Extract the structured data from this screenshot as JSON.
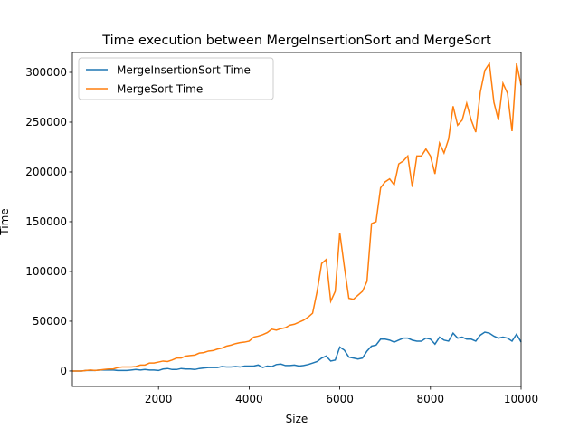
{
  "chart_data": {
    "type": "line",
    "title": "Time execution between MergeInsertionSort and MergeSort",
    "x_label": "Size",
    "y_label": "Time",
    "x": [
      100,
      200,
      300,
      400,
      500,
      600,
      700,
      800,
      900,
      1000,
      1100,
      1200,
      1300,
      1400,
      1500,
      1600,
      1700,
      1800,
      1900,
      2000,
      2100,
      2200,
      2300,
      2400,
      2500,
      2600,
      2700,
      2800,
      2900,
      3000,
      3100,
      3200,
      3300,
      3400,
      3500,
      3600,
      3700,
      3800,
      3900,
      4000,
      4100,
      4200,
      4300,
      4400,
      4500,
      4600,
      4700,
      4800,
      4900,
      5000,
      5100,
      5200,
      5300,
      5400,
      5500,
      5600,
      5700,
      5800,
      5900,
      6000,
      6100,
      6200,
      6300,
      6400,
      6500,
      6600,
      6700,
      6800,
      6900,
      7000,
      7100,
      7200,
      7300,
      7400,
      7500,
      7600,
      7700,
      7800,
      7900,
      8000,
      8100,
      8200,
      8300,
      8400,
      8500,
      8600,
      8700,
      8800,
      8900,
      9000,
      9100,
      9200,
      9300,
      9400,
      9500,
      9600,
      9700,
      9800,
      9900,
      10000
    ],
    "series": [
      {
        "name": "MergeInsertionSort Time",
        "color": "#1f77b4",
        "values": [
          0,
          0,
          0,
          500,
          500,
          500,
          1000,
          1000,
          1000,
          1000,
          500,
          500,
          500,
          1000,
          1500,
          1000,
          1500,
          1000,
          1000,
          500,
          2000,
          2500,
          1500,
          1500,
          2500,
          2000,
          2000,
          1500,
          2500,
          3000,
          3500,
          3500,
          3500,
          4500,
          4000,
          4000,
          4500,
          4000,
          5000,
          5000,
          5000,
          6000,
          3500,
          5000,
          4500,
          6500,
          7000,
          5500,
          5500,
          6000,
          5000,
          5500,
          6500,
          8000,
          9500,
          13000,
          15000,
          10000,
          11000,
          24000,
          21000,
          14000,
          13000,
          12000,
          13000,
          20000,
          25000,
          26000,
          32000,
          32000,
          31000,
          29000,
          31000,
          33000,
          33000,
          31000,
          30000,
          30000,
          33000,
          32000,
          27000,
          34000,
          31000,
          30000,
          38000,
          33000,
          34000,
          32000,
          32000,
          30000,
          36000,
          39000,
          38000,
          35000,
          33000,
          34000,
          33000,
          30000,
          37000,
          29000
        ]
      },
      {
        "name": "MergeSort Time",
        "color": "#ff7f0e",
        "values": [
          0,
          0,
          0,
          500,
          1000,
          500,
          1000,
          1500,
          2000,
          2000,
          3500,
          4000,
          4000,
          4000,
          4500,
          6000,
          6000,
          8000,
          8000,
          9000,
          10000,
          9500,
          11000,
          13000,
          13000,
          15000,
          15500,
          16000,
          18000,
          18500,
          20000,
          20500,
          22000,
          23000,
          25000,
          26000,
          27500,
          28500,
          29000,
          30000,
          34000,
          35000,
          36500,
          38500,
          42000,
          41000,
          42500,
          43500,
          46000,
          47000,
          49000,
          51000,
          54000,
          58000,
          80000,
          108000,
          112000,
          70000,
          80000,
          139000,
          105000,
          73000,
          72000,
          76000,
          80000,
          90000,
          148000,
          150000,
          184000,
          190000,
          193000,
          187000,
          208000,
          211000,
          216000,
          185000,
          216000,
          216000,
          223000,
          216000,
          198000,
          229000,
          219000,
          233000,
          266000,
          247000,
          252000,
          269000,
          252000,
          240000,
          280000,
          302000,
          309000,
          270000,
          252000,
          289000,
          279000,
          241000,
          309000,
          287000
        ]
      }
    ],
    "xlim": [
      100,
      10000
    ],
    "ylim": [
      -15500,
      320000
    ],
    "xticks": [
      2000,
      4000,
      6000,
      8000,
      10000
    ],
    "yticks": [
      0,
      50000,
      100000,
      150000,
      200000,
      250000,
      300000
    ],
    "legend": "upper left"
  }
}
